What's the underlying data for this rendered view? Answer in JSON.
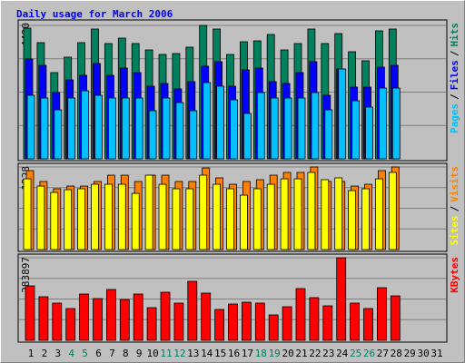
{
  "chart_data": [
    {
      "type": "bar",
      "title": "Daily usage for March 2006",
      "title_color": "#0000ff",
      "ylim": [
        0,
        4420
      ],
      "yticks": [
        4420
      ],
      "legend_separator": "/",
      "series": [
        {
          "name": "Hits",
          "color": "#00805c",
          "values": [
            4330,
            3849,
            2857,
            3368,
            3849,
            4300,
            3819,
            3999,
            3819,
            3608,
            3458,
            3488,
            3699,
            4420,
            4300,
            3458,
            3879,
            3909,
            4120,
            3608,
            3819,
            4300,
            3819,
            4150,
            3548,
            3248,
            4240,
            4300,
            null,
            null,
            null
          ]
        },
        {
          "name": "Files",
          "color": "#0000ff",
          "values": [
            3308,
            3097,
            2195,
            2616,
            2766,
            3157,
            2766,
            3007,
            2857,
            2406,
            2496,
            2315,
            2556,
            3067,
            3217,
            2406,
            2947,
            3007,
            2556,
            2496,
            2857,
            3217,
            2105,
            2977,
            2376,
            2376,
            3037,
            3097,
            null,
            null,
            null
          ]
        },
        {
          "name": "Pages",
          "color": "#00c0ff",
          "values": [
            2105,
            2015,
            1624,
            2015,
            2255,
            2105,
            2015,
            2015,
            2015,
            1594,
            2015,
            1864,
            1594,
            2526,
            2406,
            1955,
            1504,
            2195,
            2015,
            2015,
            2015,
            2195,
            1624,
            2977,
            1924,
            1714,
            2345,
            2345,
            null,
            null,
            null
          ]
        }
      ]
    },
    {
      "type": "bar",
      "ylim": [
        0,
        1228
      ],
      "yticks": [
        1228
      ],
      "legend_separator": "/",
      "series": [
        {
          "name": "Visits",
          "color": "#ff8000",
          "values": [
            1174,
            1012,
            904,
            944,
            944,
            1012,
            1106,
            1106,
            1012,
            1106,
            1106,
            1012,
            1012,
            1214,
            1066,
            971,
            1012,
            1039,
            1106,
            1147,
            1147,
            1228,
            1012,
            1012,
            944,
            971,
            1174,
            1228,
            null,
            null,
            null
          ]
        },
        {
          "name": "Sites",
          "color": "#ffff00",
          "values": [
            1052,
            944,
            850,
            890,
            904,
            971,
            971,
            971,
            836,
            1106,
            971,
            904,
            904,
            1106,
            971,
            904,
            809,
            904,
            971,
            1052,
            1052,
            1147,
            1039,
            1066,
            877,
            904,
            1052,
            1147,
            null,
            null,
            null
          ]
        }
      ]
    },
    {
      "type": "bar",
      "ylim": [
        0,
        283897
      ],
      "yticks": [
        283897
      ],
      "series": [
        {
          "name": "KBytes",
          "color": "#ff0000",
          "values": [
            187200,
            149760,
            127920,
            109200,
            159120,
            143520,
            174720,
            140400,
            159120,
            112320,
            165360,
            127920,
            202800,
            162240,
            106080,
            124800,
            131040,
            127920,
            87360,
            115440,
            177840,
            146640,
            118560,
            283897,
            127920,
            109200,
            180960,
            152880,
            null,
            null,
            null
          ]
        }
      ],
      "categories": [
        "1",
        "2",
        "3",
        "4",
        "5",
        "6",
        "7",
        "8",
        "9",
        "10",
        "11",
        "12",
        "13",
        "14",
        "15",
        "16",
        "17",
        "18",
        "19",
        "20",
        "21",
        "22",
        "23",
        "24",
        "25",
        "26",
        "27",
        "28",
        "29",
        "30",
        "31"
      ],
      "category_colors": [
        "#000000",
        "#000000",
        "#000000",
        "#00805c",
        "#00805c",
        "#000000",
        "#000000",
        "#000000",
        "#000000",
        "#000000",
        "#00805c",
        "#00805c",
        "#000000",
        "#000000",
        "#000000",
        "#000000",
        "#000000",
        "#00805c",
        "#00805c",
        "#000000",
        "#000000",
        "#000000",
        "#000000",
        "#000000",
        "#00805c",
        "#00805c",
        "#000000",
        "#000000",
        "#000000",
        "#000000",
        "#000000"
      ]
    }
  ]
}
